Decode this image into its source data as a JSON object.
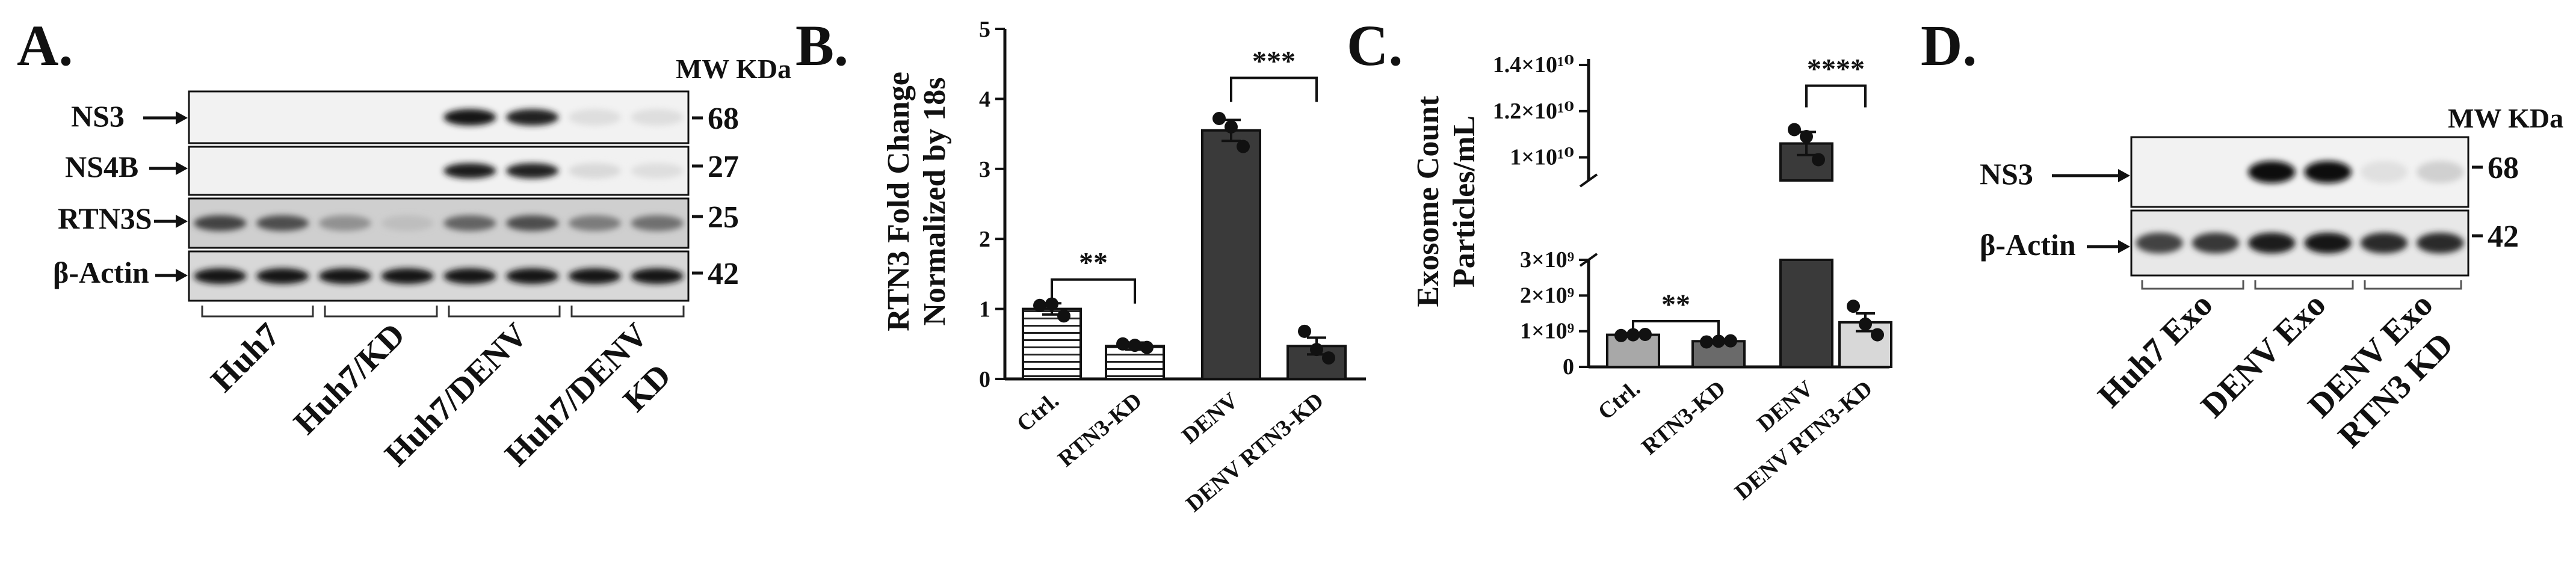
{
  "panels": {
    "A": {
      "label": "A.",
      "mw_header": "MW KDa",
      "rows": [
        {
          "name": "NS3",
          "mw": "68",
          "intensity": [
            0.0,
            0.0,
            0.0,
            0.0,
            0.95,
            0.9,
            0.06,
            0.06
          ]
        },
        {
          "name": "NS4B",
          "mw": "27",
          "intensity": [
            0.0,
            0.0,
            0.0,
            0.0,
            0.92,
            0.9,
            0.08,
            0.06
          ]
        },
        {
          "name": "RTN3S",
          "mw": "25",
          "intensity": [
            0.75,
            0.7,
            0.4,
            0.2,
            0.6,
            0.7,
            0.5,
            0.55
          ]
        },
        {
          "name": "β-Actin",
          "mw": "42",
          "intensity": [
            0.95,
            0.95,
            0.95,
            0.95,
            0.95,
            0.95,
            0.95,
            0.95
          ]
        }
      ],
      "groups": [
        {
          "line1": "Huh7"
        },
        {
          "line1": "Huh7/KD"
        },
        {
          "line1": "Huh7/DENV"
        },
        {
          "line1": "Huh7/DENV",
          "line2": "KD"
        }
      ]
    },
    "D": {
      "label": "D.",
      "mw_header": "MW KDa",
      "rows": [
        {
          "name": "NS3",
          "mw": "68",
          "intensity": [
            0.0,
            0.0,
            0.98,
            0.98,
            0.05,
            0.12
          ]
        },
        {
          "name": "β-Actin",
          "mw": "42",
          "intensity": [
            0.75,
            0.8,
            0.92,
            0.95,
            0.85,
            0.85
          ]
        }
      ],
      "groups": [
        {
          "line1": "Huh7 Exo"
        },
        {
          "line1": "DENV Exo"
        },
        {
          "line1": "DENV Exo",
          "line2": "RTN3 KD"
        }
      ]
    }
  },
  "chart_data": [
    {
      "panel": "B.",
      "type": "bar",
      "ylabel_lines": [
        "RTN3 Fold Change",
        "Normalized by 18s"
      ],
      "ylim": [
        0,
        5
      ],
      "yticks": [
        0,
        1,
        2,
        3,
        4,
        5
      ],
      "categories": [
        "Ctrl.",
        "RTN3-KD",
        "DENV",
        "DENV RTN3-KD"
      ],
      "values": [
        1.0,
        0.47,
        3.55,
        0.47
      ],
      "errors": [
        0.08,
        0.05,
        0.15,
        0.12
      ],
      "points": [
        [
          1.05,
          1.07,
          0.9
        ],
        [
          0.5,
          0.48,
          0.45
        ],
        [
          3.72,
          3.6,
          3.32
        ],
        [
          0.68,
          0.42,
          0.3
        ]
      ],
      "fills": [
        "hstripe",
        "hstripe",
        "#3a3a3a",
        "#3a3a3a"
      ],
      "significance": [
        {
          "from": 0,
          "to": 1,
          "text": "**"
        },
        {
          "from": 2,
          "to": 3,
          "text": "***"
        }
      ]
    },
    {
      "panel": "C.",
      "type": "bar",
      "ylabel_lines": [
        "Exosome Count",
        "Particles/mL"
      ],
      "broken_axis": true,
      "lower_ylim": [
        0,
        3000000000
      ],
      "upper_ylim": [
        9000000000,
        14000000000
      ],
      "lower_ticks": [
        {
          "value": 0,
          "label": "0"
        },
        {
          "value": 1000000000,
          "label": "1×10⁹"
        },
        {
          "value": 2000000000,
          "label": "2×10⁹"
        },
        {
          "value": 3000000000,
          "label": "3×10⁹"
        }
      ],
      "upper_ticks": [
        {
          "value": 10000000000,
          "label": "1×10¹⁰"
        },
        {
          "value": 12000000000,
          "label": "1.2×10¹⁰"
        },
        {
          "value": 14000000000,
          "label": "1.4×10¹⁰"
        }
      ],
      "categories": [
        "Ctrl.",
        "RTN3-KD",
        "DENV",
        "DENV RTN3-KD"
      ],
      "values": [
        900000000,
        720000000,
        10600000000,
        1250000000
      ],
      "errors": [
        40000000,
        30000000,
        500000000,
        250000000
      ],
      "points": [
        [
          880000000,
          900000000,
          910000000
        ],
        [
          700000000,
          720000000,
          730000000
        ],
        [
          11200000000,
          10900000000,
          9900000000
        ],
        [
          1700000000,
          1200000000,
          900000000
        ]
      ],
      "fills": [
        "#a8a8a8",
        "#6a6a6a",
        "#3a3a3a",
        "#d8d8d8"
      ],
      "significance": [
        {
          "from": 0,
          "to": 1,
          "text": "**"
        },
        {
          "from": 2,
          "to": 3,
          "text": "****"
        }
      ]
    }
  ]
}
